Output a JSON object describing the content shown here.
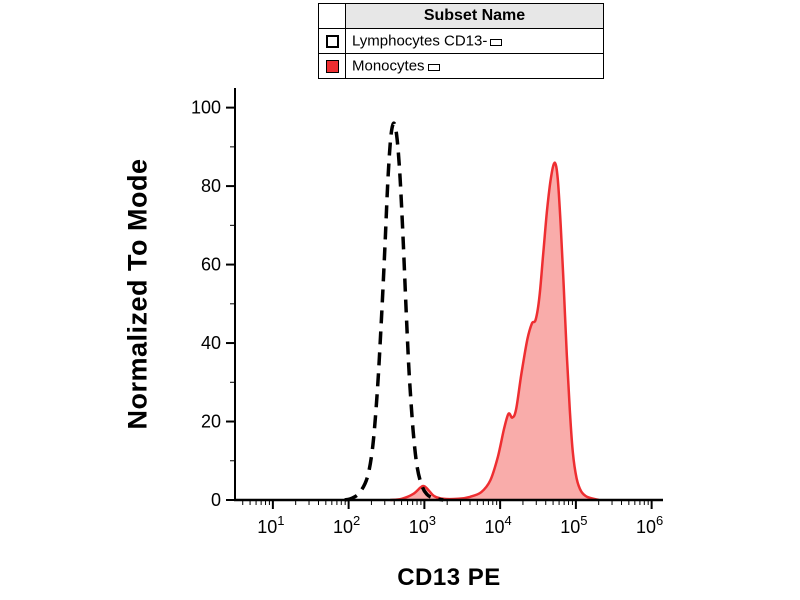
{
  "legend": {
    "header": "Subset Name",
    "entries": [
      {
        "label": "Lymphocytes CD13-",
        "swatch": "open-black-dashed"
      },
      {
        "label": "Monocytes",
        "swatch": "filled-red"
      }
    ]
  },
  "colors": {
    "lymphocytes_stroke": "#000000",
    "monocytes_stroke": "#ee2e31",
    "monocytes_fill": "#f8a3a1",
    "legend_header_bg": "#e7e7e7",
    "axis": "#000000"
  },
  "chart_data": {
    "type": "area",
    "subtype": "flow-cytometry-histogram",
    "title": "",
    "xlabel": "CD13 PE",
    "ylabel": "Normalized To Mode",
    "x_scale": "log10",
    "xlim_log10": [
      0.5,
      6.15
    ],
    "x_tick_base": "10",
    "x_tick_exponents": [
      1,
      2,
      3,
      4,
      5,
      6
    ],
    "ylim": [
      0,
      105
    ],
    "y_ticks": [
      0,
      20,
      40,
      60,
      80,
      100
    ],
    "y_minor_ticks": [
      10,
      30,
      50,
      70,
      90
    ],
    "grid": false,
    "legend_position": "top",
    "series": [
      {
        "name": "Monocytes",
        "style": "solid-filled",
        "peak": {
          "x_log10": 4.72,
          "y": 86
        },
        "points_log10x_y": [
          [
            2.55,
            0
          ],
          [
            2.7,
            0.3
          ],
          [
            2.85,
            1.5
          ],
          [
            2.95,
            3.2
          ],
          [
            3.0,
            3.5
          ],
          [
            3.06,
            2.4
          ],
          [
            3.13,
            1.0
          ],
          [
            3.25,
            0.3
          ],
          [
            3.45,
            0.3
          ],
          [
            3.6,
            0.8
          ],
          [
            3.75,
            2
          ],
          [
            3.87,
            5
          ],
          [
            3.97,
            11
          ],
          [
            4.05,
            18
          ],
          [
            4.11,
            22
          ],
          [
            4.16,
            21
          ],
          [
            4.21,
            23
          ],
          [
            4.28,
            32
          ],
          [
            4.36,
            41
          ],
          [
            4.42,
            45
          ],
          [
            4.47,
            46
          ],
          [
            4.52,
            52
          ],
          [
            4.57,
            63
          ],
          [
            4.62,
            74
          ],
          [
            4.67,
            82
          ],
          [
            4.72,
            86
          ],
          [
            4.76,
            82
          ],
          [
            4.8,
            70
          ],
          [
            4.84,
            54
          ],
          [
            4.88,
            37
          ],
          [
            4.92,
            23
          ],
          [
            4.96,
            12
          ],
          [
            5.01,
            5.5
          ],
          [
            5.07,
            2.2
          ],
          [
            5.15,
            0.8
          ],
          [
            5.3,
            0
          ]
        ]
      },
      {
        "name": "Lymphocytes CD13-",
        "style": "dashed",
        "peak": {
          "x_log10": 2.6,
          "y": 96
        },
        "points_log10x_y": [
          [
            1.95,
            0
          ],
          [
            2.05,
            0.5
          ],
          [
            2.15,
            2
          ],
          [
            2.25,
            6
          ],
          [
            2.32,
            14
          ],
          [
            2.38,
            28
          ],
          [
            2.43,
            45
          ],
          [
            2.48,
            65
          ],
          [
            2.52,
            82
          ],
          [
            2.56,
            93
          ],
          [
            2.6,
            96
          ],
          [
            2.64,
            92
          ],
          [
            2.68,
            82
          ],
          [
            2.72,
            66
          ],
          [
            2.76,
            48
          ],
          [
            2.8,
            32
          ],
          [
            2.85,
            18
          ],
          [
            2.9,
            9
          ],
          [
            2.96,
            4
          ],
          [
            3.03,
            1.5
          ],
          [
            3.12,
            0.5
          ],
          [
            3.25,
            0
          ]
        ]
      }
    ]
  }
}
